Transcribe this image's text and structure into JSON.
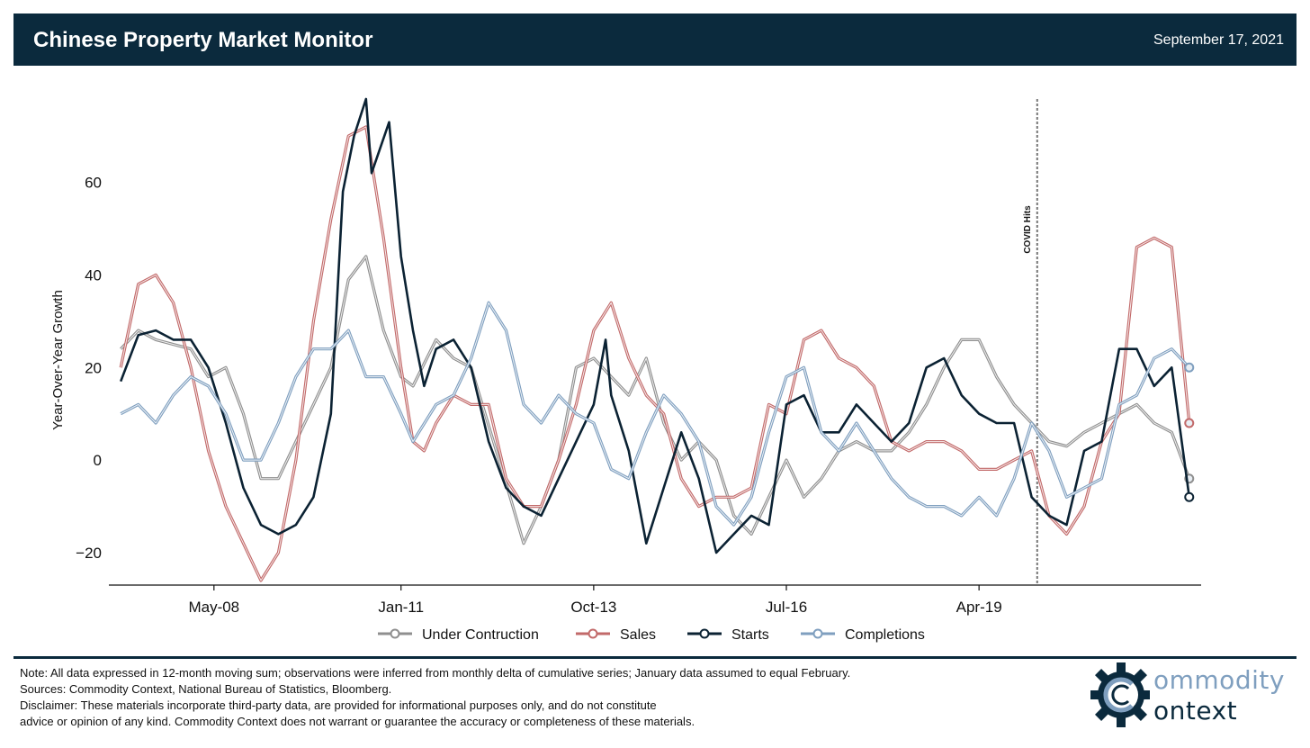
{
  "header": {
    "title": "Chinese Property Market Monitor",
    "date": "September 17, 2021"
  },
  "chart_data": {
    "type": "line",
    "ylabel": "Year-Over-Year Growth",
    "yticks": [
      -20,
      0,
      20,
      40,
      60
    ],
    "ylim": [
      -27,
      78
    ],
    "xlim": [
      2006.83,
      2022.42
    ],
    "xticks": [
      {
        "label": "May-08",
        "x": 2008.33
      },
      {
        "label": "Jan-11",
        "x": 2011.0
      },
      {
        "label": "Oct-13",
        "x": 2013.75
      },
      {
        "label": "Jul-16",
        "x": 2016.5
      },
      {
        "label": "Apr-19",
        "x": 2019.25
      }
    ],
    "annotation": {
      "label": "COVID Hits",
      "x": 2020.08
    },
    "legend_position": "bottom-center",
    "series": [
      {
        "name": "Under Contruction",
        "color": "#8f8f8f",
        "points": [
          [
            2007.0,
            24
          ],
          [
            2007.25,
            28
          ],
          [
            2007.5,
            26
          ],
          [
            2007.75,
            25
          ],
          [
            2008.0,
            24
          ],
          [
            2008.25,
            18
          ],
          [
            2008.5,
            20
          ],
          [
            2008.75,
            10
          ],
          [
            2009.0,
            -4
          ],
          [
            2009.25,
            -4
          ],
          [
            2009.5,
            4
          ],
          [
            2009.75,
            12
          ],
          [
            2010.0,
            20
          ],
          [
            2010.25,
            39
          ],
          [
            2010.5,
            44
          ],
          [
            2010.75,
            28
          ],
          [
            2011.0,
            18
          ],
          [
            2011.17,
            16
          ],
          [
            2011.5,
            26
          ],
          [
            2011.75,
            22
          ],
          [
            2012.0,
            20
          ],
          [
            2012.5,
            -5
          ],
          [
            2012.75,
            -18
          ],
          [
            2013.0,
            -10
          ],
          [
            2013.25,
            0
          ],
          [
            2013.5,
            20
          ],
          [
            2013.75,
            22
          ],
          [
            2014.0,
            18
          ],
          [
            2014.25,
            14
          ],
          [
            2014.5,
            22
          ],
          [
            2014.75,
            8
          ],
          [
            2015.0,
            0
          ],
          [
            2015.25,
            4
          ],
          [
            2015.5,
            0
          ],
          [
            2015.75,
            -12
          ],
          [
            2016.0,
            -16
          ],
          [
            2016.25,
            -8
          ],
          [
            2016.5,
            0
          ],
          [
            2016.75,
            -8
          ],
          [
            2017.0,
            -4
          ],
          [
            2017.25,
            2
          ],
          [
            2017.5,
            4
          ],
          [
            2017.75,
            2
          ],
          [
            2018.0,
            2
          ],
          [
            2018.25,
            6
          ],
          [
            2018.5,
            12
          ],
          [
            2018.75,
            20
          ],
          [
            2019.0,
            26
          ],
          [
            2019.25,
            26
          ],
          [
            2019.5,
            18
          ],
          [
            2019.75,
            12
          ],
          [
            2020.0,
            8
          ],
          [
            2020.25,
            4
          ],
          [
            2020.5,
            3
          ],
          [
            2020.75,
            6
          ],
          [
            2021.0,
            8
          ],
          [
            2021.25,
            10
          ],
          [
            2021.5,
            12
          ],
          [
            2021.75,
            8
          ],
          [
            2022.0,
            6
          ],
          [
            2022.25,
            -4
          ]
        ]
      },
      {
        "name": "Sales",
        "color": "#c26a6a",
        "points": [
          [
            2007.0,
            20
          ],
          [
            2007.25,
            38
          ],
          [
            2007.5,
            40
          ],
          [
            2007.75,
            34
          ],
          [
            2008.0,
            20
          ],
          [
            2008.25,
            2
          ],
          [
            2008.5,
            -10
          ],
          [
            2008.75,
            -18
          ],
          [
            2009.0,
            -26
          ],
          [
            2009.25,
            -20
          ],
          [
            2009.5,
            0
          ],
          [
            2009.75,
            30
          ],
          [
            2010.0,
            52
          ],
          [
            2010.25,
            70
          ],
          [
            2010.5,
            72
          ],
          [
            2010.75,
            48
          ],
          [
            2011.0,
            20
          ],
          [
            2011.17,
            4
          ],
          [
            2011.33,
            2
          ],
          [
            2011.5,
            8
          ],
          [
            2011.75,
            14
          ],
          [
            2012.0,
            12
          ],
          [
            2012.25,
            12
          ],
          [
            2012.5,
            -4
          ],
          [
            2012.75,
            -10
          ],
          [
            2013.0,
            -10
          ],
          [
            2013.25,
            0
          ],
          [
            2013.5,
            12
          ],
          [
            2013.75,
            28
          ],
          [
            2014.0,
            34
          ],
          [
            2014.25,
            22
          ],
          [
            2014.5,
            14
          ],
          [
            2014.75,
            10
          ],
          [
            2015.0,
            -4
          ],
          [
            2015.25,
            -10
          ],
          [
            2015.5,
            -8
          ],
          [
            2015.75,
            -8
          ],
          [
            2016.0,
            -6
          ],
          [
            2016.25,
            12
          ],
          [
            2016.5,
            10
          ],
          [
            2016.75,
            26
          ],
          [
            2017.0,
            28
          ],
          [
            2017.25,
            22
          ],
          [
            2017.5,
            20
          ],
          [
            2017.75,
            16
          ],
          [
            2018.0,
            4
          ],
          [
            2018.25,
            2
          ],
          [
            2018.5,
            4
          ],
          [
            2018.75,
            4
          ],
          [
            2019.0,
            2
          ],
          [
            2019.25,
            -2
          ],
          [
            2019.5,
            -2
          ],
          [
            2019.75,
            0
          ],
          [
            2020.0,
            2
          ],
          [
            2020.25,
            -12
          ],
          [
            2020.5,
            -16
          ],
          [
            2020.75,
            -10
          ],
          [
            2021.0,
            4
          ],
          [
            2021.25,
            10
          ],
          [
            2021.5,
            46
          ],
          [
            2021.75,
            48
          ],
          [
            2022.0,
            46
          ],
          [
            2022.25,
            8
          ]
        ]
      },
      {
        "name": "Starts",
        "color": "#0b2233",
        "points": [
          [
            2007.0,
            17
          ],
          [
            2007.25,
            27
          ],
          [
            2007.5,
            28
          ],
          [
            2007.75,
            26
          ],
          [
            2008.0,
            26
          ],
          [
            2008.25,
            20
          ],
          [
            2008.5,
            8
          ],
          [
            2008.75,
            -6
          ],
          [
            2009.0,
            -14
          ],
          [
            2009.25,
            -16
          ],
          [
            2009.5,
            -14
          ],
          [
            2009.75,
            -8
          ],
          [
            2010.0,
            10
          ],
          [
            2010.17,
            58
          ],
          [
            2010.33,
            70
          ],
          [
            2010.5,
            78
          ],
          [
            2010.58,
            62
          ],
          [
            2010.83,
            73
          ],
          [
            2011.0,
            44
          ],
          [
            2011.17,
            28
          ],
          [
            2011.33,
            16
          ],
          [
            2011.5,
            24
          ],
          [
            2011.75,
            26
          ],
          [
            2012.0,
            20
          ],
          [
            2012.25,
            4
          ],
          [
            2012.5,
            -6
          ],
          [
            2012.75,
            -10
          ],
          [
            2013.0,
            -12
          ],
          [
            2013.25,
            -4
          ],
          [
            2013.5,
            4
          ],
          [
            2013.75,
            12
          ],
          [
            2013.92,
            26
          ],
          [
            2014.0,
            14
          ],
          [
            2014.25,
            2
          ],
          [
            2014.5,
            -18
          ],
          [
            2014.75,
            -6
          ],
          [
            2015.0,
            6
          ],
          [
            2015.25,
            -4
          ],
          [
            2015.5,
            -20
          ],
          [
            2015.75,
            -16
          ],
          [
            2016.0,
            -12
          ],
          [
            2016.25,
            -14
          ],
          [
            2016.5,
            12
          ],
          [
            2016.75,
            14
          ],
          [
            2017.0,
            6
          ],
          [
            2017.25,
            6
          ],
          [
            2017.5,
            12
          ],
          [
            2017.75,
            8
          ],
          [
            2018.0,
            4
          ],
          [
            2018.25,
            8
          ],
          [
            2018.5,
            20
          ],
          [
            2018.75,
            22
          ],
          [
            2019.0,
            14
          ],
          [
            2019.25,
            10
          ],
          [
            2019.5,
            8
          ],
          [
            2019.75,
            8
          ],
          [
            2020.0,
            -8
          ],
          [
            2020.25,
            -12
          ],
          [
            2020.5,
            -14
          ],
          [
            2020.75,
            2
          ],
          [
            2021.0,
            4
          ],
          [
            2021.25,
            24
          ],
          [
            2021.5,
            24
          ],
          [
            2021.75,
            16
          ],
          [
            2022.0,
            20
          ],
          [
            2022.25,
            -8
          ]
        ]
      },
      {
        "name": "Completions",
        "color": "#7f9fbf",
        "points": [
          [
            2007.0,
            10
          ],
          [
            2007.25,
            12
          ],
          [
            2007.5,
            8
          ],
          [
            2007.75,
            14
          ],
          [
            2008.0,
            18
          ],
          [
            2008.25,
            16
          ],
          [
            2008.5,
            10
          ],
          [
            2008.75,
            0
          ],
          [
            2009.0,
            0
          ],
          [
            2009.25,
            8
          ],
          [
            2009.5,
            18
          ],
          [
            2009.75,
            24
          ],
          [
            2010.0,
            24
          ],
          [
            2010.25,
            28
          ],
          [
            2010.5,
            18
          ],
          [
            2010.75,
            18
          ],
          [
            2011.0,
            10
          ],
          [
            2011.17,
            4
          ],
          [
            2011.5,
            12
          ],
          [
            2011.75,
            14
          ],
          [
            2012.0,
            22
          ],
          [
            2012.25,
            34
          ],
          [
            2012.5,
            28
          ],
          [
            2012.75,
            12
          ],
          [
            2013.0,
            8
          ],
          [
            2013.25,
            14
          ],
          [
            2013.5,
            10
          ],
          [
            2013.75,
            8
          ],
          [
            2014.0,
            -2
          ],
          [
            2014.25,
            -4
          ],
          [
            2014.5,
            6
          ],
          [
            2014.75,
            14
          ],
          [
            2015.0,
            10
          ],
          [
            2015.25,
            4
          ],
          [
            2015.5,
            -10
          ],
          [
            2015.75,
            -14
          ],
          [
            2016.0,
            -8
          ],
          [
            2016.25,
            6
          ],
          [
            2016.5,
            18
          ],
          [
            2016.75,
            20
          ],
          [
            2017.0,
            6
          ],
          [
            2017.25,
            2
          ],
          [
            2017.5,
            8
          ],
          [
            2017.75,
            2
          ],
          [
            2018.0,
            -4
          ],
          [
            2018.25,
            -8
          ],
          [
            2018.5,
            -10
          ],
          [
            2018.75,
            -10
          ],
          [
            2019.0,
            -12
          ],
          [
            2019.25,
            -8
          ],
          [
            2019.5,
            -12
          ],
          [
            2019.75,
            -4
          ],
          [
            2020.0,
            8
          ],
          [
            2020.25,
            2
          ],
          [
            2020.5,
            -8
          ],
          [
            2020.75,
            -6
          ],
          [
            2021.0,
            -4
          ],
          [
            2021.25,
            12
          ],
          [
            2021.5,
            14
          ],
          [
            2021.75,
            22
          ],
          [
            2022.0,
            24
          ],
          [
            2022.25,
            20
          ]
        ]
      }
    ]
  },
  "footer": {
    "note": "Note: All data expressed in 12-month moving sum; observations were inferred from monthly delta of cumulative series; January data assumed to equal February.",
    "sources": "Sources: Commodity Context, National Bureau of Statistics, Bloomberg.",
    "disclaimer_1": "Disclaimer: These materials incorporate third-party data, are provided for informational purposes only, and do not constitute",
    "disclaimer_2": "advice or opinion of any kind. Commodity Context does not warrant or guarantee the accuracy or completeness of these materials."
  },
  "logo": {
    "word1": "ommodity",
    "word2": "ontext"
  }
}
